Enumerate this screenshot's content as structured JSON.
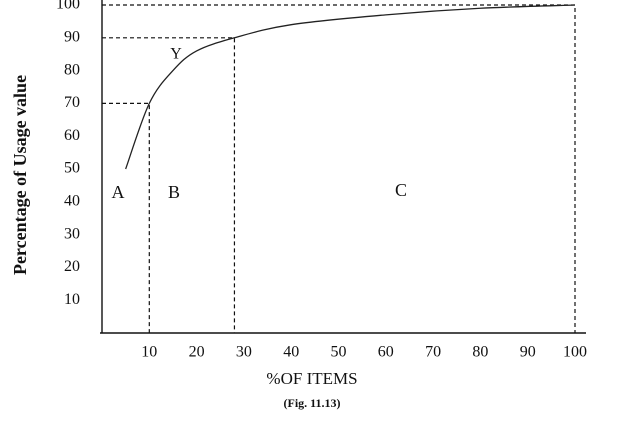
{
  "chart_data": {
    "type": "line",
    "y_label": "Percentage of Usage value",
    "x_label": "%OF ITEMS",
    "caption": "(Fig. 11.13)",
    "x": [
      5,
      10,
      15,
      20,
      28,
      40,
      60,
      80,
      100
    ],
    "series": [
      {
        "name": "Y",
        "color": "#222222",
        "values": [
          50,
          70,
          80,
          86,
          90,
          94,
          97,
          99,
          100
        ]
      }
    ],
    "xlim": [
      0,
      100
    ],
    "xticks": [
      10,
      20,
      30,
      40,
      50,
      60,
      70,
      80,
      90,
      100
    ],
    "ylim": [
      0,
      100
    ],
    "yticks": [
      10,
      20,
      30,
      40,
      50,
      60,
      70,
      80,
      90,
      100
    ],
    "guide_points": [
      1,
      4,
      8
    ],
    "annotations": [
      "A",
      "B",
      "C"
    ],
    "grid": false
  }
}
